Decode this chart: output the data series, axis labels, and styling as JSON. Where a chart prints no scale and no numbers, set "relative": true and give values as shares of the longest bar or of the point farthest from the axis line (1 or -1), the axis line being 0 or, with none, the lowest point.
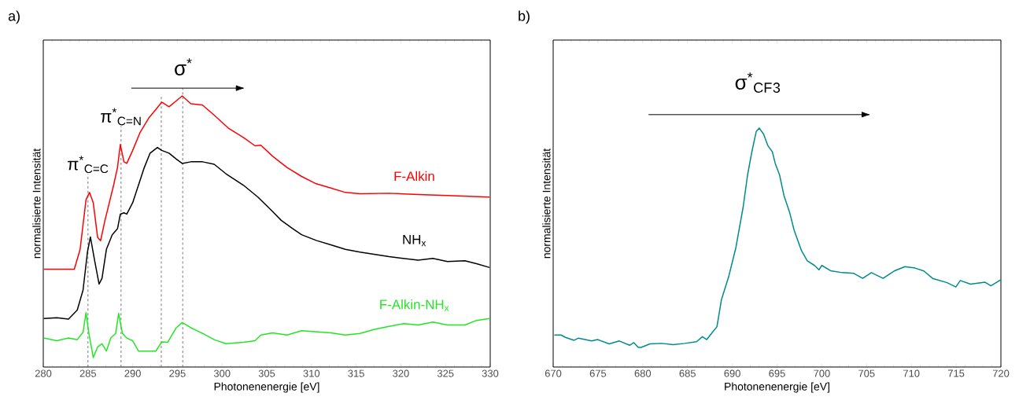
{
  "chart_data": [
    {
      "type": "line",
      "relative": true,
      "xlabel": "Photonenenergie [eV]",
      "ylabel": "normalisierte Intensität",
      "xlim": [
        280,
        330
      ],
      "xticks": [
        280,
        285,
        290,
        295,
        300,
        305,
        310,
        315,
        320,
        325,
        330
      ],
      "annotations": [
        "a)",
        "σ$^{*}$"
      ],
      "ref_lines": [
        {
          "axis": "x",
          "value": 285.0,
          "label": "π$^{*}$$_{C=C}$",
          "color": "#555555",
          "line_style": "dashed"
        },
        {
          "axis": "x",
          "value": 288.7,
          "label": "π$^{*}$$_{C=N}$",
          "color": "#555555",
          "line_style": "dashed"
        },
        {
          "axis": "x",
          "value": 293.2,
          "color": "#555555",
          "line_style": "dashed"
        },
        {
          "axis": "x",
          "value": 295.6,
          "color": "#555555",
          "line_style": "dashed"
        }
      ],
      "series": [
        {
          "name": "F-Alkin",
          "color": "#ff0000",
          "x": [
            280.05,
            283.47,
            284.12,
            284.78,
            285.17,
            285.59,
            286.08,
            286.41,
            286.9,
            287.87,
            288.3,
            288.62,
            289.02,
            289.34,
            290.0,
            290.81,
            291.79,
            292.6,
            293.25,
            294.07,
            294.88,
            295.54,
            296.51,
            297.82,
            299.12,
            300.75,
            302.38,
            303.69,
            304.34,
            305.64,
            307.27,
            308.9,
            310.53,
            312.17,
            313.8,
            315.43,
            318.69,
            321.95,
            325.21,
            329.93
          ],
          "values": [
            0.361,
            0.361,
            0.434,
            0.617,
            0.644,
            0.606,
            0.478,
            0.466,
            0.541,
            0.671,
            0.736,
            0.821,
            0.757,
            0.751,
            0.799,
            0.864,
            0.918,
            0.95,
            0.977,
            0.96,
            0.982,
            1.0,
            0.971,
            0.966,
            0.929,
            0.88,
            0.847,
            0.816,
            0.818,
            0.778,
            0.736,
            0.703,
            0.676,
            0.66,
            0.644,
            0.639,
            0.641,
            0.636,
            0.633,
            0.627
          ]
        },
        {
          "name": "NH$_{x}$",
          "color": "#000000",
          "x": [
            280.05,
            281.52,
            282.82,
            283.8,
            284.45,
            284.94,
            285.27,
            285.75,
            286.24,
            286.57,
            287.06,
            287.71,
            288.3,
            288.62,
            289.02,
            289.34,
            290.0,
            290.65,
            291.3,
            291.95,
            292.77,
            293.25,
            294.07,
            294.88,
            295.54,
            296.51,
            297.82,
            299.12,
            300.43,
            302.38,
            304.01,
            305.64,
            306.62,
            307.93,
            308.9,
            310.53,
            312.17,
            313.8,
            315.43,
            318.69,
            321.95,
            323.58,
            325.21,
            327.16,
            328.47,
            329.93
          ],
          "values": [
            0.179,
            0.182,
            0.177,
            0.21,
            0.284,
            0.424,
            0.48,
            0.392,
            0.306,
            0.327,
            0.434,
            0.488,
            0.51,
            0.564,
            0.569,
            0.564,
            0.606,
            0.671,
            0.736,
            0.789,
            0.81,
            0.799,
            0.789,
            0.767,
            0.751,
            0.757,
            0.757,
            0.748,
            0.713,
            0.671,
            0.627,
            0.574,
            0.541,
            0.51,
            0.488,
            0.467,
            0.451,
            0.434,
            0.424,
            0.407,
            0.394,
            0.401,
            0.389,
            0.392,
            0.381,
            0.367
          ]
        },
        {
          "name": "F-Alkin-NH$_{x}$",
          "color": "#22e622",
          "x": [
            280.05,
            281.52,
            282.82,
            283.8,
            284.45,
            284.78,
            285.1,
            285.59,
            286.08,
            286.57,
            287.06,
            287.55,
            288.1,
            288.43,
            288.85,
            289.34,
            290.0,
            290.65,
            291.3,
            291.95,
            292.6,
            293.25,
            293.91,
            294.88,
            295.54,
            296.51,
            297.82,
            299.12,
            300.43,
            302.38,
            303.69,
            304.34,
            305.64,
            307.27,
            308.9,
            312.17,
            313.8,
            315.43,
            317.06,
            318.69,
            320.32,
            321.95,
            323.58,
            325.21,
            327.16,
            328.47,
            329.93
          ],
          "values": [
            0.107,
            0.097,
            0.107,
            0.101,
            0.128,
            0.201,
            0.124,
            0.035,
            0.074,
            0.086,
            0.059,
            0.107,
            0.124,
            0.198,
            0.124,
            0.107,
            0.097,
            0.059,
            0.059,
            0.059,
            0.059,
            0.093,
            0.091,
            0.145,
            0.164,
            0.145,
            0.124,
            0.101,
            0.086,
            0.091,
            0.097,
            0.118,
            0.126,
            0.118,
            0.134,
            0.126,
            0.118,
            0.124,
            0.139,
            0.15,
            0.16,
            0.155,
            0.166,
            0.155,
            0.155,
            0.172,
            0.179
          ]
        }
      ]
    },
    {
      "type": "line",
      "relative": true,
      "xlabel": "Photonenenergie [eV]",
      "ylabel": "normalisierte Intensität",
      "xlim": [
        670,
        720
      ],
      "xticks": [
        670,
        675,
        680,
        685,
        690,
        695,
        700,
        705,
        710,
        715,
        720
      ],
      "annotations": [
        "b)",
        "σ$^{*}$$_{CF}$$_{3}$"
      ],
      "series": [
        {
          "color": "#008b8b",
          "x": [
            670.13,
            670.88,
            671.37,
            672.34,
            672.83,
            674.3,
            674.95,
            676.25,
            677.39,
            678.53,
            679.01,
            679.5,
            679.83,
            680.8,
            682.11,
            683.41,
            684.71,
            686.01,
            686.66,
            687.15,
            687.8,
            688.29,
            688.78,
            689.59,
            690.4,
            691.22,
            691.71,
            692.19,
            692.68,
            693.01,
            693.5,
            693.98,
            694.47,
            694.8,
            695.28,
            695.77,
            696.42,
            696.91,
            697.73,
            698.38,
            699.19,
            699.68,
            700.0,
            700.98,
            702.28,
            703.58,
            704.56,
            705.54,
            706.84,
            708.14,
            709.28,
            710.42,
            711.39,
            712.37,
            713.99,
            714.97,
            715.46,
            716.6,
            718.23,
            718.88,
            720.0
          ],
          "values": [
            0.134,
            0.134,
            0.124,
            0.112,
            0.121,
            0.109,
            0.115,
            0.097,
            0.109,
            0.091,
            0.102,
            0.082,
            0.082,
            0.097,
            0.099,
            0.094,
            0.099,
            0.106,
            0.127,
            0.115,
            0.146,
            0.169,
            0.28,
            0.377,
            0.499,
            0.67,
            0.804,
            0.901,
            0.986,
            1.0,
            0.974,
            0.926,
            0.901,
            0.852,
            0.804,
            0.718,
            0.645,
            0.572,
            0.487,
            0.444,
            0.425,
            0.407,
            0.425,
            0.403,
            0.395,
            0.392,
            0.371,
            0.395,
            0.371,
            0.403,
            0.42,
            0.414,
            0.402,
            0.371,
            0.353,
            0.335,
            0.362,
            0.347,
            0.355,
            0.34,
            0.365
          ]
        }
      ]
    }
  ]
}
